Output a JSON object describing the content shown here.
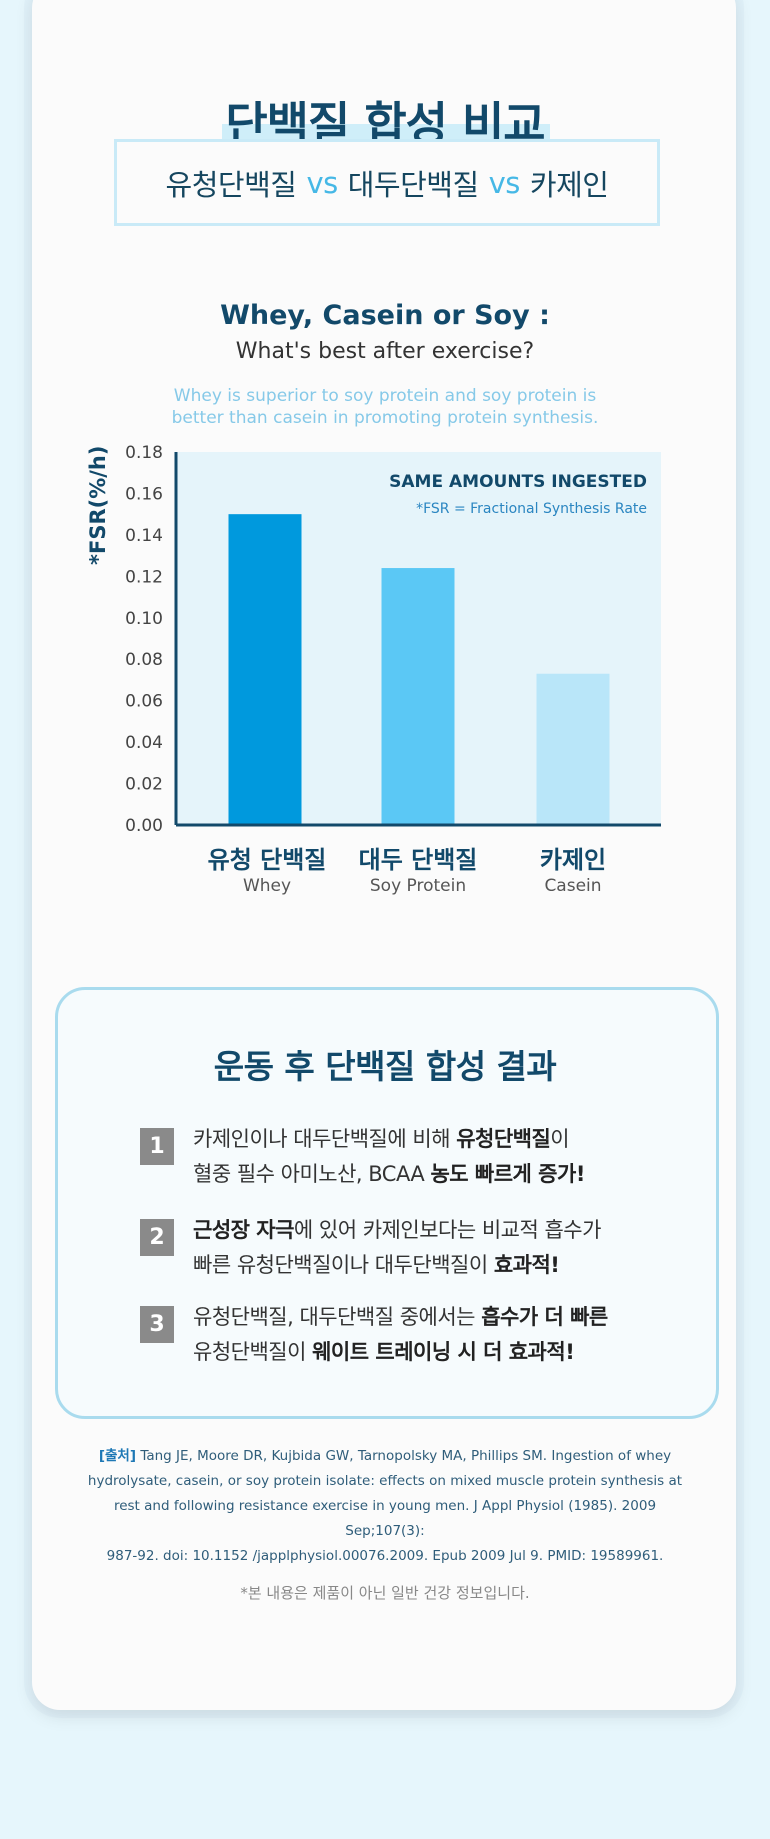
{
  "header": {
    "title": "단백질 합성 비교",
    "subtitle": {
      "a": "유청단백질",
      "vs1": "vs",
      "b": "대두단백질",
      "vs2": "vs",
      "c": "카제인"
    }
  },
  "chart_intro": {
    "title": "Whey, Casein or Soy :",
    "subtitle": "What's best after exercise?",
    "desc_line1": "Whey is superior to soy protein and soy protein is",
    "desc_line2": "better than casein in promoting protein synthesis."
  },
  "chart_data": {
    "type": "bar",
    "categories": [
      "유청 단백질",
      "대두 단백질",
      "카제인"
    ],
    "categories_en": [
      "Whey",
      "Soy Protein",
      "Casein"
    ],
    "values": [
      0.15,
      0.124,
      0.073
    ],
    "ylabel": "*FSR(%/h)",
    "ylim": [
      0,
      0.18
    ],
    "yticks": [
      "0.00",
      "0.02",
      "0.04",
      "0.06",
      "0.08",
      "0.10",
      "0.12",
      "0.14",
      "0.16",
      "0.18"
    ],
    "annotation_title": "SAME AMOUNTS INGESTED",
    "annotation_note": "*FSR = Fractional Synthesis Rate",
    "colors": [
      "#0099dd",
      "#5bc8f5",
      "#b9e6f9"
    ],
    "plot_background": "#e5f4fa",
    "legend": "none",
    "grid": false
  },
  "results": {
    "title": "운동 후 단백질 합성 결과",
    "items": [
      {
        "num": "1",
        "l1_a": "카제인이나 대두단백질에 비해 ",
        "l1_b": "유청단백질",
        "l1_c": "이",
        "l2_a": "혈중 필수 아미노산, BCAA ",
        "l2_b": "농도 빠르게 증가!"
      },
      {
        "num": "2",
        "l1_a": "근성장 자극",
        "l1_b": "에 있어 카제인보다는 비교적 흡수가",
        "l2_a": "빠른 유청단백질이나 대두단백질이 ",
        "l2_b": "효과적!"
      },
      {
        "num": "3",
        "l1_a": "유청단백질, 대두단백질 중에서는 ",
        "l1_b": "흡수가 더 빠른",
        "l2_a": "유청단백질이 ",
        "l2_b": "웨이트 트레이닝 시 더 효과적!"
      }
    ]
  },
  "source": {
    "tag": "[출처]",
    "line1": "Tang JE, Moore DR, Kujbida GW, Tarnopolsky MA, Phillips SM. Ingestion of whey",
    "line2": "hydrolysate, casein, or soy protein isolate: effects on mixed muscle protein synthesis at",
    "line3": "rest and following resistance exercise in young men. J Appl Physiol (1985). 2009 Sep;107(3):",
    "line4": "987-92. doi: 10.1152 /japplphysiol.00076.2009. Epub 2009 Jul 9. PMID: 19589961."
  },
  "notice": "*본 내용은 제품이 아닌 일반 건강 정보입니다."
}
